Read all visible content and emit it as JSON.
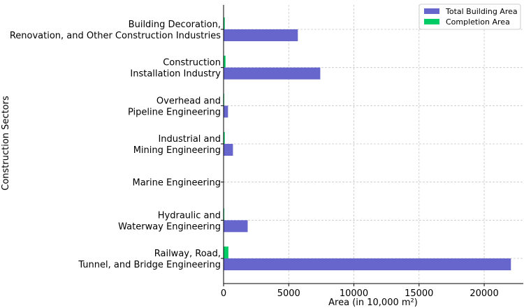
{
  "chart_data": {
    "type": "bar",
    "orientation": "horizontal",
    "title": "",
    "xlabel": "Area (in 10,000 m²)",
    "ylabel": "Construction Sectors",
    "xlim": [
      0,
      23000
    ],
    "xticks": [
      0,
      5000,
      10000,
      15000,
      20000
    ],
    "grid": true,
    "legend_position": "top-right",
    "categories": [
      [
        "Railway, Road,",
        "Tunnel, and Bridge Engineering"
      ],
      [
        "Hydraulic and",
        "Waterway Engineering"
      ],
      [
        "Marine Engineering"
      ],
      [
        "Industrial and",
        "Mining Engineering"
      ],
      [
        "Overhead and",
        "Pipeline Engineering"
      ],
      [
        "Construction",
        "Installation Industry"
      ],
      [
        "Building Decoration,",
        "Renovation, and Other Construction Industries"
      ]
    ],
    "series": [
      {
        "name": "Total Building Area",
        "color": "#6666cc",
        "values": [
          22050,
          1850,
          10,
          720,
          340,
          7420,
          5700
        ]
      },
      {
        "name": "Completion Area",
        "color": "#00cc66",
        "values": [
          370,
          55,
          2,
          90,
          50,
          150,
          90
        ]
      }
    ]
  }
}
